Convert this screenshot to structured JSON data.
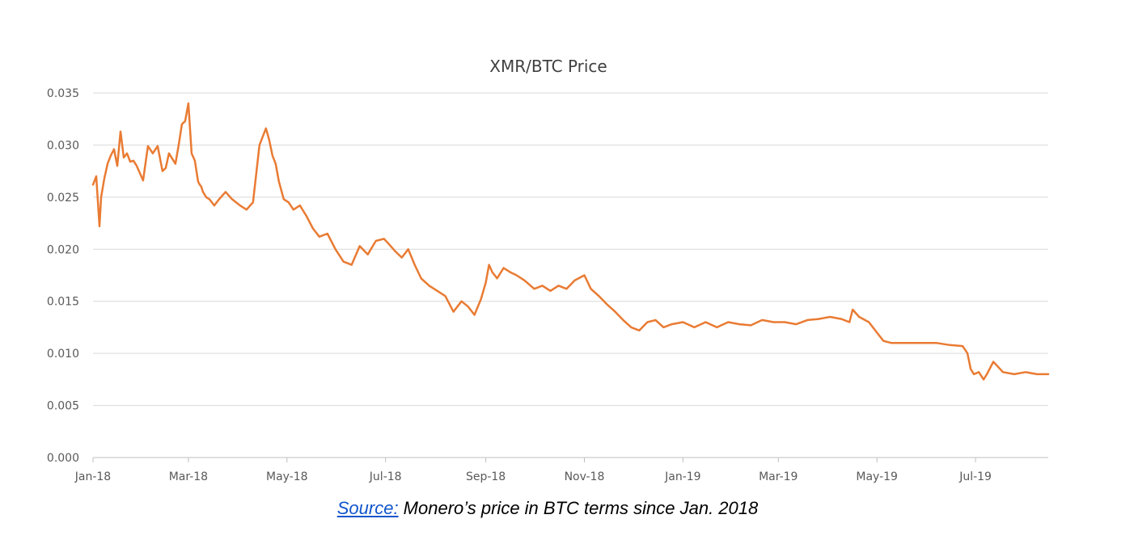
{
  "chart_data": {
    "type": "line",
    "title": "XMR/BTC Price",
    "xlabel": "",
    "ylabel": "",
    "ylim": [
      0,
      0.035
    ],
    "yticks": [
      "0.000",
      "0.005",
      "0.010",
      "0.015",
      "0.020",
      "0.025",
      "0.030",
      "0.035"
    ],
    "xlim": [
      "2018-01-01",
      "2019-08-15"
    ],
    "xticks": [
      {
        "date": "2018-01-01",
        "label": "Jan-18"
      },
      {
        "date": "2018-03-01",
        "label": "Mar-18"
      },
      {
        "date": "2018-05-01",
        "label": "May-18"
      },
      {
        "date": "2018-07-01",
        "label": "Jul-18"
      },
      {
        "date": "2018-09-01",
        "label": "Sep-18"
      },
      {
        "date": "2018-11-01",
        "label": "Nov-18"
      },
      {
        "date": "2019-01-01",
        "label": "Jan-19"
      },
      {
        "date": "2019-03-01",
        "label": "Mar-19"
      },
      {
        "date": "2019-05-01",
        "label": "May-19"
      },
      {
        "date": "2019-07-01",
        "label": "Jul-19"
      }
    ],
    "grid": true,
    "legend": "none",
    "series_color": "#E97B33",
    "series": [
      {
        "x": [
          "2018-01-01",
          "2018-01-03",
          "2018-01-05",
          "2018-01-06",
          "2018-01-08",
          "2018-01-10",
          "2018-01-12",
          "2018-01-14",
          "2018-01-16",
          "2018-01-18",
          "2018-01-20",
          "2018-01-22",
          "2018-01-24",
          "2018-01-26",
          "2018-01-28",
          "2018-01-30",
          "2018-02-01",
          "2018-02-04",
          "2018-02-07",
          "2018-02-10",
          "2018-02-13",
          "2018-02-15",
          "2018-02-17",
          "2018-02-19",
          "2018-02-21",
          "2018-02-23",
          "2018-02-25",
          "2018-02-27",
          "2018-03-01",
          "2018-03-03",
          "2018-03-05",
          "2018-03-07",
          "2018-03-08",
          "2018-03-09",
          "2018-03-10",
          "2018-03-12",
          "2018-03-14",
          "2018-03-17",
          "2018-03-20",
          "2018-03-24",
          "2018-03-28",
          "2018-04-02",
          "2018-04-06",
          "2018-04-10",
          "2018-04-14",
          "2018-04-18",
          "2018-04-20",
          "2018-04-22",
          "2018-04-24",
          "2018-04-26",
          "2018-04-29",
          "2018-05-02",
          "2018-05-05",
          "2018-05-09",
          "2018-05-13",
          "2018-05-17",
          "2018-05-21",
          "2018-05-26",
          "2018-05-31",
          "2018-06-05",
          "2018-06-10",
          "2018-06-15",
          "2018-06-20",
          "2018-06-25",
          "2018-06-30",
          "2018-07-03",
          "2018-07-07",
          "2018-07-11",
          "2018-07-15",
          "2018-07-19",
          "2018-07-23",
          "2018-07-28",
          "2018-08-02",
          "2018-08-07",
          "2018-08-12",
          "2018-08-17",
          "2018-08-21",
          "2018-08-25",
          "2018-08-29",
          "2018-09-01",
          "2018-09-03",
          "2018-09-05",
          "2018-09-08",
          "2018-09-12",
          "2018-09-16",
          "2018-09-20",
          "2018-09-25",
          "2018-10-01",
          "2018-10-06",
          "2018-10-11",
          "2018-10-16",
          "2018-10-21",
          "2018-10-26",
          "2018-11-01",
          "2018-11-05",
          "2018-11-10",
          "2018-11-15",
          "2018-11-20",
          "2018-11-25",
          "2018-11-30",
          "2018-12-05",
          "2018-12-10",
          "2018-12-15",
          "2018-12-20",
          "2018-12-25",
          "2019-01-01",
          "2019-01-08",
          "2019-01-15",
          "2019-01-22",
          "2019-01-29",
          "2019-02-05",
          "2019-02-12",
          "2019-02-19",
          "2019-02-26",
          "2019-03-05",
          "2019-03-12",
          "2019-03-19",
          "2019-03-26",
          "2019-04-02",
          "2019-04-09",
          "2019-04-14",
          "2019-04-16",
          "2019-04-20",
          "2019-04-26",
          "2019-05-01",
          "2019-05-05",
          "2019-05-10",
          "2019-05-15",
          "2019-05-22",
          "2019-05-30",
          "2019-06-07",
          "2019-06-15",
          "2019-06-23",
          "2019-06-26",
          "2019-06-28",
          "2019-06-30",
          "2019-07-03",
          "2019-07-06",
          "2019-07-08",
          "2019-07-12",
          "2019-07-18",
          "2019-07-25",
          "2019-08-01",
          "2019-08-08",
          "2019-08-15"
        ],
        "values": [
          0.0262,
          0.027,
          0.0222,
          0.025,
          0.0268,
          0.0282,
          0.029,
          0.0296,
          0.028,
          0.0313,
          0.0288,
          0.0292,
          0.0284,
          0.0285,
          0.028,
          0.0273,
          0.0266,
          0.0299,
          0.0292,
          0.0299,
          0.0275,
          0.0278,
          0.0292,
          0.0287,
          0.0282,
          0.03,
          0.032,
          0.0323,
          0.034,
          0.0292,
          0.0285,
          0.0265,
          0.0262,
          0.026,
          0.0255,
          0.025,
          0.0248,
          0.0242,
          0.0248,
          0.0255,
          0.0248,
          0.0242,
          0.0238,
          0.0245,
          0.03,
          0.0316,
          0.0305,
          0.029,
          0.0282,
          0.0265,
          0.0248,
          0.0245,
          0.0238,
          0.0242,
          0.0232,
          0.022,
          0.0212,
          0.0215,
          0.02,
          0.0188,
          0.0185,
          0.0203,
          0.0195,
          0.0208,
          0.021,
          0.0205,
          0.0198,
          0.0192,
          0.02,
          0.0185,
          0.0172,
          0.0165,
          0.016,
          0.0155,
          0.014,
          0.015,
          0.0145,
          0.0137,
          0.0152,
          0.0168,
          0.0185,
          0.0178,
          0.0172,
          0.0182,
          0.0178,
          0.0175,
          0.017,
          0.0162,
          0.0165,
          0.016,
          0.0165,
          0.0162,
          0.017,
          0.0175,
          0.0162,
          0.0155,
          0.0147,
          0.014,
          0.0132,
          0.0125,
          0.0122,
          0.013,
          0.0132,
          0.0125,
          0.0128,
          0.013,
          0.0125,
          0.013,
          0.0125,
          0.013,
          0.0128,
          0.0127,
          0.0132,
          0.013,
          0.013,
          0.0128,
          0.0132,
          0.0133,
          0.0135,
          0.0133,
          0.013,
          0.0142,
          0.0135,
          0.013,
          0.012,
          0.0112,
          0.011,
          0.011,
          0.011,
          0.011,
          0.011,
          0.0108,
          0.0107,
          0.01,
          0.0085,
          0.008,
          0.0082,
          0.0075,
          0.008,
          0.0092,
          0.0082,
          0.008,
          0.0082,
          0.008,
          0.008
        ]
      }
    ]
  },
  "caption": {
    "source_link": "Source:",
    "text": " Monero’s price in BTC terms since Jan. 2018"
  }
}
